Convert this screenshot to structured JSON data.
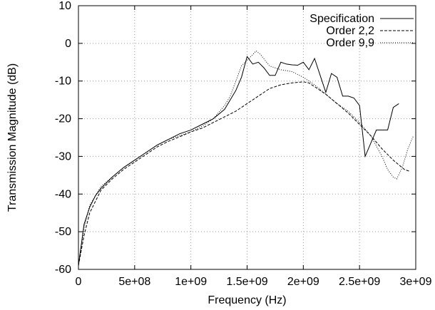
{
  "chart_data": {
    "type": "line",
    "title": "",
    "xlabel": "Frequency (Hz)",
    "ylabel": "Transmission Magnitude (dB)",
    "xlim": [
      0,
      3000000000
    ],
    "ylim": [
      -60,
      10
    ],
    "grid": true,
    "legend_position": "top-right",
    "x_ticks": [
      {
        "value": 0,
        "label": "0"
      },
      {
        "value": 500000000,
        "label": "5e+08"
      },
      {
        "value": 1000000000,
        "label": "1e+09"
      },
      {
        "value": 1500000000,
        "label": "1.5e+09"
      },
      {
        "value": 2000000000,
        "label": "2e+09"
      },
      {
        "value": 2500000000,
        "label": "2.5e+09"
      },
      {
        "value": 3000000000,
        "label": "3e+09"
      }
    ],
    "y_ticks": [
      {
        "value": 10,
        "label": "10"
      },
      {
        "value": 0,
        "label": "0"
      },
      {
        "value": -10,
        "label": "-10"
      },
      {
        "value": -20,
        "label": "-20"
      },
      {
        "value": -30,
        "label": "-30"
      },
      {
        "value": -40,
        "label": "-40"
      },
      {
        "value": -50,
        "label": "-50"
      },
      {
        "value": -60,
        "label": "-60"
      }
    ],
    "series": [
      {
        "name": "Specification",
        "style": "solid",
        "x": [
          0,
          50000000,
          100000000,
          150000000,
          200000000,
          300000000,
          400000000,
          500000000,
          600000000,
          700000000,
          800000000,
          900000000,
          1000000000,
          1100000000,
          1200000000,
          1300000000,
          1350000000,
          1400000000,
          1450000000,
          1500000000,
          1550000000,
          1600000000,
          1650000000,
          1700000000,
          1750000000,
          1800000000,
          1850000000,
          1900000000,
          1950000000,
          2000000000,
          2050000000,
          2100000000,
          2150000000,
          2200000000,
          2250000000,
          2300000000,
          2350000000,
          2400000000,
          2450000000,
          2500000000,
          2550000000,
          2600000000,
          2650000000,
          2700000000,
          2750000000,
          2800000000,
          2850000000,
          2900000000,
          2950000000
        ],
        "y": [
          -59,
          -48,
          -43.5,
          -40.5,
          -38.5,
          -35.5,
          -33,
          -31,
          -29,
          -27,
          -25.5,
          -24,
          -23,
          -21.5,
          -20,
          -17.5,
          -15,
          -12.5,
          -9,
          -3.5,
          -5.5,
          -5,
          -6.5,
          -8.5,
          -8.5,
          -5,
          -5.5,
          -5.7,
          -5.8,
          -5,
          -7,
          -4,
          -8.5,
          -13,
          -8,
          -9,
          -14,
          -14,
          -14.5,
          -16.5,
          -30,
          -26.5,
          -23,
          -23,
          -23,
          -17,
          -16,
          null,
          null
        ]
      },
      {
        "name": "Order 2,2",
        "style": "dashed",
        "x": [
          0,
          50000000,
          100000000,
          200000000,
          300000000,
          400000000,
          500000000,
          600000000,
          700000000,
          800000000,
          900000000,
          1000000000,
          1100000000,
          1200000000,
          1300000000,
          1400000000,
          1500000000,
          1600000000,
          1700000000,
          1800000000,
          1900000000,
          2000000000,
          2050000000,
          2100000000,
          2200000000,
          2300000000,
          2400000000,
          2500000000,
          2600000000,
          2700000000,
          2800000000,
          2900000000,
          2950000000
        ],
        "y": [
          -59,
          -51,
          -45,
          -39,
          -36,
          -33.5,
          -31.5,
          -29.5,
          -27.5,
          -26,
          -24.8,
          -23.5,
          -22.5,
          -21,
          -19.5,
          -18,
          -16,
          -14,
          -12,
          -11,
          -10.5,
          -10.2,
          -10.5,
          -11.5,
          -13.5,
          -16,
          -18.5,
          -21.5,
          -24.5,
          -28,
          -31,
          -33.5,
          -34
        ]
      },
      {
        "name": "Order 9,9",
        "style": "dotted",
        "x": [
          0,
          50000000,
          100000000,
          200000000,
          300000000,
          400000000,
          500000000,
          600000000,
          700000000,
          800000000,
          900000000,
          1000000000,
          1100000000,
          1200000000,
          1300000000,
          1350000000,
          1400000000,
          1450000000,
          1500000000,
          1550000000,
          1580000000,
          1620000000,
          1700000000,
          1800000000,
          1900000000,
          2000000000,
          2100000000,
          2200000000,
          2300000000,
          2400000000,
          2500000000,
          2600000000,
          2700000000,
          2750000000,
          2800000000,
          2830000000,
          2880000000,
          2930000000,
          2980000000
        ],
        "y": [
          -59,
          -49,
          -43,
          -38,
          -35.5,
          -33,
          -31,
          -29,
          -27,
          -25.5,
          -24.5,
          -23.5,
          -22,
          -20,
          -16.5,
          -14,
          -10,
          -6,
          -4.5,
          -3,
          -2,
          -3,
          -6,
          -7,
          -7.5,
          -9,
          -11,
          -13.5,
          -16,
          -18,
          -21,
          -24.5,
          -30,
          -33.5,
          -35.5,
          -36,
          -33,
          -28,
          -24.5
        ]
      }
    ]
  }
}
